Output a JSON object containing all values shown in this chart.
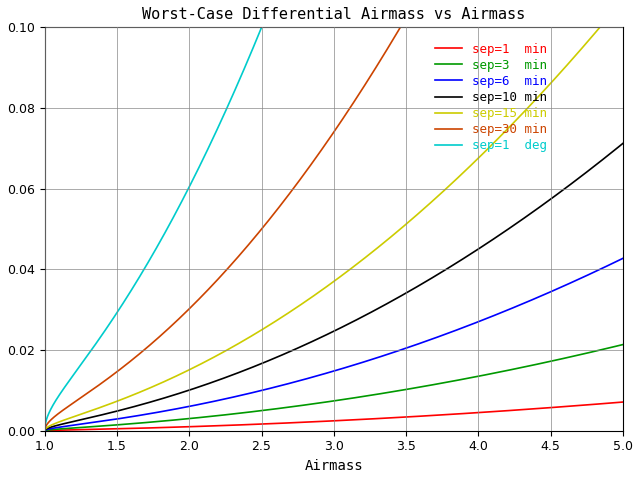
{
  "title": "Worst-Case Differential Airmass vs Airmass",
  "xlabel": "Airmass",
  "ylabel": "",
  "xlim": [
    1,
    5
  ],
  "ylim": [
    0,
    0.1
  ],
  "xticks": [
    1,
    1.5,
    2,
    2.5,
    3,
    3.5,
    4,
    4.5,
    5
  ],
  "yticks": [
    0,
    0.02,
    0.04,
    0.06,
    0.08,
    0.1
  ],
  "series": [
    {
      "label": "sep=1  min",
      "sep_deg": 0.016667,
      "color": "#ff0000"
    },
    {
      "label": "sep=3  min",
      "sep_deg": 0.05,
      "color": "#009900"
    },
    {
      "label": "sep=6  min",
      "sep_deg": 0.1,
      "color": "#0000ff"
    },
    {
      "label": "sep=10 min",
      "sep_deg": 0.16667,
      "color": "#000000"
    },
    {
      "label": "sep=15 min",
      "sep_deg": 0.25,
      "color": "#cccc00"
    },
    {
      "label": "sep=30 min",
      "sep_deg": 0.5,
      "color": "#cc4400"
    },
    {
      "label": "sep=1  deg",
      "sep_deg": 1.0,
      "color": "#00cccc"
    }
  ],
  "background_color": "#ffffff",
  "grid_color": "#888888",
  "title_fontsize": 11,
  "label_fontsize": 10,
  "tick_fontsize": 9,
  "legend_fontsize": 9
}
